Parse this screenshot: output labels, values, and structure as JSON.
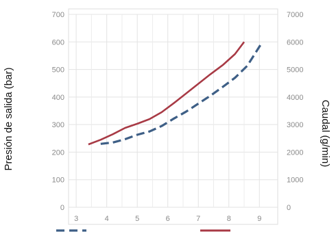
{
  "chart_data": {
    "type": "line",
    "title": "",
    "ylabel": "Presión de salida (bar)",
    "ylabel_right": "Caudal (g/min)",
    "xlabel": "",
    "x_ticks": [
      "3",
      "4",
      "5",
      "6",
      "7",
      "8",
      "9"
    ],
    "xlim": [
      2.75,
      9.6
    ],
    "y_ticks": [
      "0",
      "100",
      "200",
      "300",
      "400",
      "500",
      "600",
      "700"
    ],
    "ylim": [
      0,
      700
    ],
    "y_right_ticks": [
      "0",
      "1000",
      "2000",
      "3000",
      "4000",
      "5000",
      "6000",
      "7000"
    ],
    "ylim_right": [
      0,
      7000
    ],
    "grid": true,
    "legend_position": "bottom",
    "series": [
      {
        "axis": "left",
        "color": "#a83a45",
        "style": "solid",
        "x": [
          3.4,
          3.8,
          4.2,
          4.6,
          5.0,
          5.4,
          5.8,
          6.2,
          6.6,
          7.0,
          7.4,
          7.8,
          8.2,
          8.5
        ],
        "y": [
          228,
          245,
          265,
          288,
          303,
          320,
          345,
          378,
          413,
          448,
          483,
          516,
          556,
          600
        ]
      },
      {
        "axis": "right",
        "color": "#3e5f86",
        "style": "dashed",
        "x": [
          3.8,
          4.2,
          4.6,
          5.0,
          5.4,
          5.8,
          6.2,
          6.6,
          7.0,
          7.4,
          7.8,
          8.2,
          8.6,
          9.1
        ],
        "y": [
          2300,
          2350,
          2470,
          2630,
          2750,
          2950,
          3220,
          3470,
          3760,
          4050,
          4370,
          4700,
          5130,
          6000
        ]
      }
    ]
  }
}
